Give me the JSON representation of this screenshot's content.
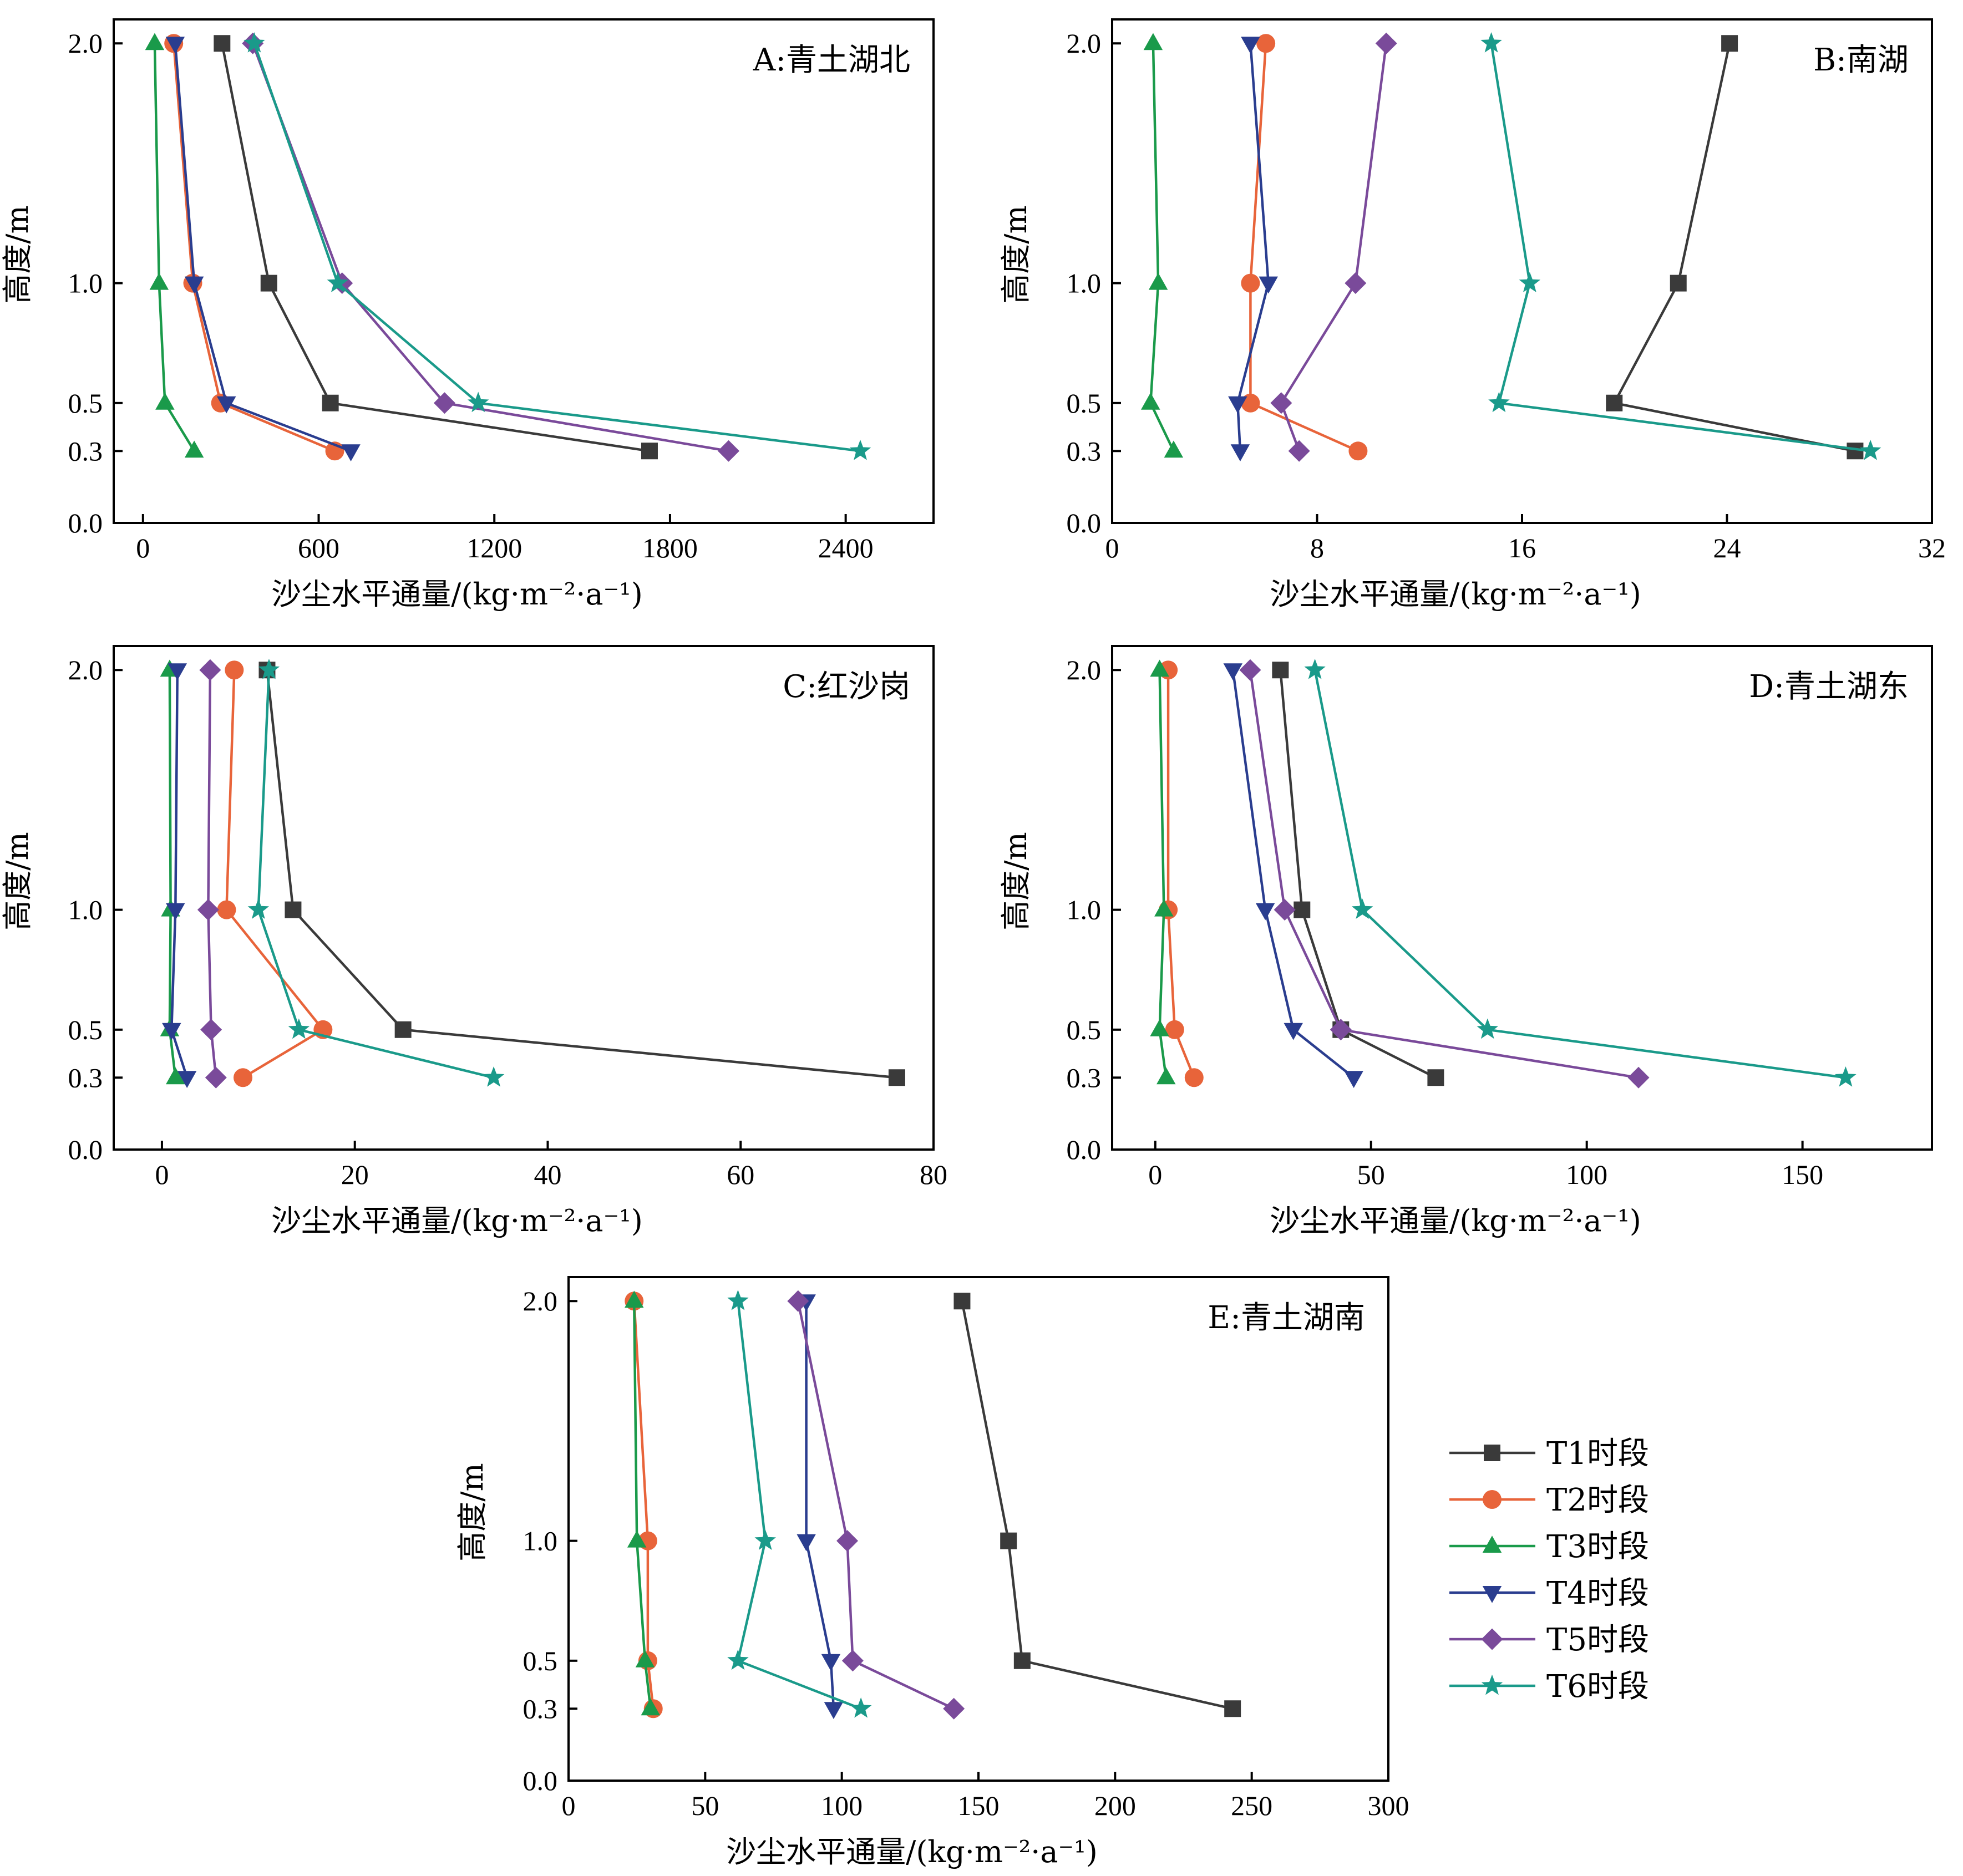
{
  "colors": {
    "T1": "#3a3a3a",
    "T2": "#e8643a",
    "T3": "#1a9a4a",
    "T4": "#2a3d8f",
    "T5": "#7a4a9a",
    "T6": "#1a9a8a"
  },
  "legend": {
    "entries": [
      {
        "key": "T1",
        "label": "T1时段",
        "marker": "square"
      },
      {
        "key": "T2",
        "label": "T2时段",
        "marker": "circle"
      },
      {
        "key": "T3",
        "label": "T3时段",
        "marker": "triangle-up"
      },
      {
        "key": "T4",
        "label": "T4时段",
        "marker": "triangle-down"
      },
      {
        "key": "T5",
        "label": "T5时段",
        "marker": "diamond"
      },
      {
        "key": "T6",
        "label": "T6时段",
        "marker": "star"
      }
    ]
  },
  "chart_data": [
    {
      "type": "line",
      "title": "A:青土湖北",
      "xlabel": "沙尘水平通量/(kg·m⁻²·a⁻¹)",
      "ylabel": "高度/m",
      "xlim": [
        -100,
        2700
      ],
      "ylim": [
        0.0,
        2.1
      ],
      "xticks": [
        0,
        600,
        1200,
        1800,
        2400
      ],
      "xtick_labels": [
        "0",
        "600",
        "1200",
        "1800",
        "2400"
      ],
      "yticks": [
        0.0,
        0.3,
        0.5,
        1.0,
        2.0
      ],
      "ytick_labels": [
        "0.0",
        "0.3",
        "0.5",
        "1.0",
        "2.0"
      ],
      "y": [
        2.0,
        1.0,
        0.5,
        0.3
      ],
      "series": [
        {
          "name": "T1时段",
          "key": "T1",
          "x": [
            270,
            430,
            640,
            1730
          ]
        },
        {
          "name": "T2时段",
          "key": "T2",
          "x": [
            105,
            170,
            265,
            655
          ]
        },
        {
          "name": "T3时段",
          "key": "T3",
          "x": [
            40,
            55,
            75,
            175
          ]
        },
        {
          "name": "T4时段",
          "key": "T4",
          "x": [
            110,
            175,
            285,
            710
          ]
        },
        {
          "name": "T5时段",
          "key": "T5",
          "x": [
            375,
            680,
            1030,
            2000
          ]
        },
        {
          "name": "T6时段",
          "key": "T6",
          "x": [
            380,
            665,
            1145,
            2450
          ]
        }
      ]
    },
    {
      "type": "line",
      "title": "B:南湖",
      "xlabel": "沙尘水平通量/(kg·m⁻²·a⁻¹)",
      "ylabel": "高度/m",
      "xlim": [
        0,
        32
      ],
      "ylim": [
        0.0,
        2.1
      ],
      "xticks": [
        0,
        8,
        16,
        24,
        32
      ],
      "xtick_labels": [
        "0",
        "8",
        "16",
        "24",
        "32"
      ],
      "yticks": [
        0.0,
        0.3,
        0.5,
        1.0,
        2.0
      ],
      "ytick_labels": [
        "0.0",
        "0.3",
        "0.5",
        "1.0",
        "2.0"
      ],
      "y": [
        2.0,
        1.0,
        0.5,
        0.3
      ],
      "series": [
        {
          "name": "T1时段",
          "key": "T1",
          "x": [
            24.1,
            22.1,
            19.6,
            29.0
          ]
        },
        {
          "name": "T2时段",
          "key": "T2",
          "x": [
            6.0,
            5.4,
            5.4,
            9.6
          ]
        },
        {
          "name": "T3时段",
          "key": "T3",
          "x": [
            1.6,
            1.8,
            1.5,
            2.4
          ]
        },
        {
          "name": "T4时段",
          "key": "T4",
          "x": [
            5.4,
            6.1,
            4.9,
            5.0
          ]
        },
        {
          "name": "T5时段",
          "key": "T5",
          "x": [
            10.7,
            9.5,
            6.6,
            7.3
          ]
        },
        {
          "name": "T6时段",
          "key": "T6",
          "x": [
            14.8,
            16.3,
            15.1,
            29.6
          ]
        }
      ]
    },
    {
      "type": "line",
      "title": "C:红沙岗",
      "xlabel": "沙尘水平通量/(kg·m⁻²·a⁻¹)",
      "ylabel": "高度/m",
      "xlim": [
        -5,
        80
      ],
      "ylim": [
        0.0,
        2.1
      ],
      "xticks": [
        0,
        20,
        40,
        60,
        80
      ],
      "xtick_labels": [
        "0",
        "20",
        "40",
        "60",
        "80"
      ],
      "yticks": [
        0.0,
        0.3,
        0.5,
        1.0,
        2.0
      ],
      "ytick_labels": [
        "0.0",
        "0.3",
        "0.5",
        "1.0",
        "2.0"
      ],
      "y": [
        2.0,
        1.0,
        0.5,
        0.3
      ],
      "series": [
        {
          "name": "T1时段",
          "key": "T1",
          "x": [
            10.9,
            13.6,
            25.0,
            76.2
          ]
        },
        {
          "name": "T2时段",
          "key": "T2",
          "x": [
            7.5,
            6.7,
            16.7,
            8.4
          ]
        },
        {
          "name": "T3时段",
          "key": "T3",
          "x": [
            0.8,
            0.9,
            0.8,
            1.4
          ]
        },
        {
          "name": "T4时段",
          "key": "T4",
          "x": [
            1.6,
            1.4,
            1.0,
            2.6
          ]
        },
        {
          "name": "T5时段",
          "key": "T5",
          "x": [
            5.0,
            4.8,
            5.1,
            5.6
          ]
        },
        {
          "name": "T6时段",
          "key": "T6",
          "x": [
            11.1,
            10.0,
            14.2,
            34.4
          ]
        }
      ]
    },
    {
      "type": "line",
      "title": "D:青土湖东",
      "xlabel": "沙尘水平通量/(kg·m⁻²·a⁻¹)",
      "ylabel": "高度/m",
      "xlim": [
        -10,
        180
      ],
      "ylim": [
        0.0,
        2.1
      ],
      "xticks": [
        0,
        50,
        100,
        150
      ],
      "xtick_labels": [
        "0",
        "50",
        "100",
        "150"
      ],
      "yticks": [
        0.0,
        0.3,
        0.5,
        1.0,
        2.0
      ],
      "ytick_labels": [
        "0.0",
        "0.3",
        "0.5",
        "1.0",
        "2.0"
      ],
      "y": [
        2.0,
        1.0,
        0.5,
        0.3
      ],
      "series": [
        {
          "name": "T1时段",
          "key": "T1",
          "x": [
            29.0,
            34.0,
            43.0,
            65.0
          ]
        },
        {
          "name": "T2时段",
          "key": "T2",
          "x": [
            3.0,
            3.0,
            4.5,
            9.0
          ]
        },
        {
          "name": "T3时段",
          "key": "T3",
          "x": [
            1.0,
            2.0,
            1.0,
            2.5
          ]
        },
        {
          "name": "T4时段",
          "key": "T4",
          "x": [
            18.0,
            25.5,
            32.0,
            46.0
          ]
        },
        {
          "name": "T5时段",
          "key": "T5",
          "x": [
            22.0,
            30.0,
            43.0,
            112.0
          ]
        },
        {
          "name": "T6时段",
          "key": "T6",
          "x": [
            37.0,
            48.0,
            77.0,
            160.0
          ]
        }
      ]
    },
    {
      "type": "line",
      "title": "E:青土湖南",
      "xlabel": "沙尘水平通量/(kg·m⁻²·a⁻¹)",
      "ylabel": "高度/m",
      "xlim": [
        0,
        300
      ],
      "ylim": [
        0.0,
        2.1
      ],
      "xticks": [
        0,
        50,
        100,
        150,
        200,
        250,
        300
      ],
      "xtick_labels": [
        "0",
        "50",
        "100",
        "150",
        "200",
        "250",
        "300"
      ],
      "yticks": [
        0.0,
        0.3,
        0.5,
        1.0,
        2.0
      ],
      "ytick_labels": [
        "0.0",
        "0.3",
        "0.5",
        "1.0",
        "2.0"
      ],
      "y": [
        2.0,
        1.0,
        0.5,
        0.3
      ],
      "series": [
        {
          "name": "T1时段",
          "key": "T1",
          "x": [
            144,
            161,
            166,
            243
          ]
        },
        {
          "name": "T2时段",
          "key": "T2",
          "x": [
            24,
            29,
            29,
            31
          ]
        },
        {
          "name": "T3时段",
          "key": "T3",
          "x": [
            24,
            25,
            28,
            30
          ]
        },
        {
          "name": "T4时段",
          "key": "T4",
          "x": [
            87,
            87,
            96,
            97
          ]
        },
        {
          "name": "T5时段",
          "key": "T5",
          "x": [
            84,
            102,
            104,
            141
          ]
        },
        {
          "name": "T6时段",
          "key": "T6",
          "x": [
            62,
            72,
            62,
            107
          ]
        }
      ]
    }
  ]
}
